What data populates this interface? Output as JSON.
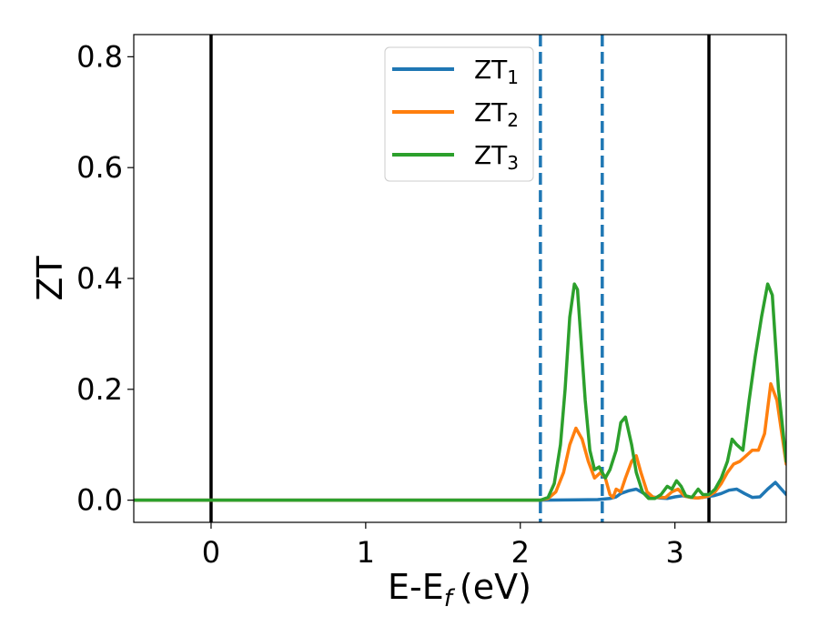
{
  "chart_data": {
    "type": "line",
    "xlabel_base": "E-E",
    "xlabel_sub": "f",
    "xlabel_unit": "(eV)",
    "ylabel": "ZT",
    "xlim": [
      -0.5,
      3.72
    ],
    "ylim": [
      -0.04,
      0.84
    ],
    "xticks": [
      0,
      1,
      2,
      3
    ],
    "yticks": [
      0.0,
      0.2,
      0.4,
      0.6,
      0.8
    ],
    "ytick_labels": [
      "0.0",
      "0.2",
      "0.4",
      "0.6",
      "0.8"
    ],
    "legend_position": "top-center",
    "grid": false,
    "vlines": [
      {
        "x": 0.0,
        "style": "solid",
        "color": "#000000"
      },
      {
        "x": 3.22,
        "style": "solid",
        "color": "#000000"
      },
      {
        "x": 2.13,
        "style": "dashed",
        "color": "#1f77b4"
      },
      {
        "x": 2.53,
        "style": "dashed",
        "color": "#1f77b4"
      }
    ],
    "series": [
      {
        "name": "ZT",
        "sub": "1",
        "color": "#1f77b4",
        "x": [
          -0.5,
          2.13,
          2.5,
          2.58,
          2.62,
          2.65,
          2.7,
          2.75,
          2.8,
          2.85,
          2.9,
          2.95,
          3.0,
          3.05,
          3.1,
          3.15,
          3.2,
          3.25,
          3.3,
          3.35,
          3.4,
          3.45,
          3.5,
          3.55,
          3.6,
          3.65,
          3.72
        ],
        "y": [
          0.0,
          0.0,
          0.001,
          0.003,
          0.006,
          0.012,
          0.017,
          0.02,
          0.012,
          0.006,
          0.004,
          0.003,
          0.006,
          0.008,
          0.005,
          0.004,
          0.006,
          0.008,
          0.012,
          0.018,
          0.02,
          0.012,
          0.005,
          0.006,
          0.02,
          0.032,
          0.01
        ]
      },
      {
        "name": "ZT",
        "sub": "2",
        "color": "#ff7f0e",
        "x": [
          -0.5,
          2.13,
          2.18,
          2.23,
          2.28,
          2.32,
          2.36,
          2.4,
          2.44,
          2.48,
          2.52,
          2.55,
          2.58,
          2.6,
          2.62,
          2.65,
          2.68,
          2.72,
          2.75,
          2.78,
          2.82,
          2.86,
          2.9,
          2.94,
          2.98,
          3.02,
          3.06,
          3.1,
          3.14,
          3.18,
          3.22,
          3.26,
          3.3,
          3.34,
          3.38,
          3.42,
          3.46,
          3.5,
          3.54,
          3.58,
          3.62,
          3.66,
          3.72
        ],
        "y": [
          0.0,
          0.0,
          0.003,
          0.015,
          0.05,
          0.1,
          0.13,
          0.11,
          0.07,
          0.04,
          0.05,
          0.04,
          0.01,
          0.005,
          0.02,
          0.015,
          0.04,
          0.07,
          0.08,
          0.05,
          0.015,
          0.005,
          0.005,
          0.005,
          0.015,
          0.02,
          0.008,
          0.005,
          0.004,
          0.005,
          0.008,
          0.015,
          0.03,
          0.05,
          0.065,
          0.07,
          0.08,
          0.09,
          0.09,
          0.12,
          0.21,
          0.18,
          0.065
        ]
      },
      {
        "name": "ZT",
        "sub": "3",
        "color": "#2ca02c",
        "x": [
          -0.5,
          2.13,
          2.18,
          2.22,
          2.26,
          2.29,
          2.32,
          2.35,
          2.37,
          2.39,
          2.42,
          2.45,
          2.48,
          2.51,
          2.55,
          2.58,
          2.62,
          2.65,
          2.68,
          2.72,
          2.75,
          2.79,
          2.83,
          2.87,
          2.91,
          2.95,
          2.98,
          3.01,
          3.04,
          3.07,
          3.11,
          3.15,
          3.18,
          3.22,
          3.26,
          3.3,
          3.34,
          3.37,
          3.4,
          3.44,
          3.48,
          3.52,
          3.56,
          3.6,
          3.63,
          3.67,
          3.72
        ],
        "y": [
          0.0,
          0.0,
          0.005,
          0.03,
          0.1,
          0.2,
          0.33,
          0.39,
          0.38,
          0.3,
          0.18,
          0.09,
          0.055,
          0.06,
          0.04,
          0.055,
          0.09,
          0.14,
          0.15,
          0.1,
          0.05,
          0.015,
          0.003,
          0.003,
          0.01,
          0.025,
          0.02,
          0.035,
          0.025,
          0.008,
          0.005,
          0.02,
          0.01,
          0.01,
          0.02,
          0.04,
          0.07,
          0.11,
          0.1,
          0.09,
          0.18,
          0.26,
          0.33,
          0.39,
          0.37,
          0.2,
          0.07
        ]
      }
    ]
  }
}
